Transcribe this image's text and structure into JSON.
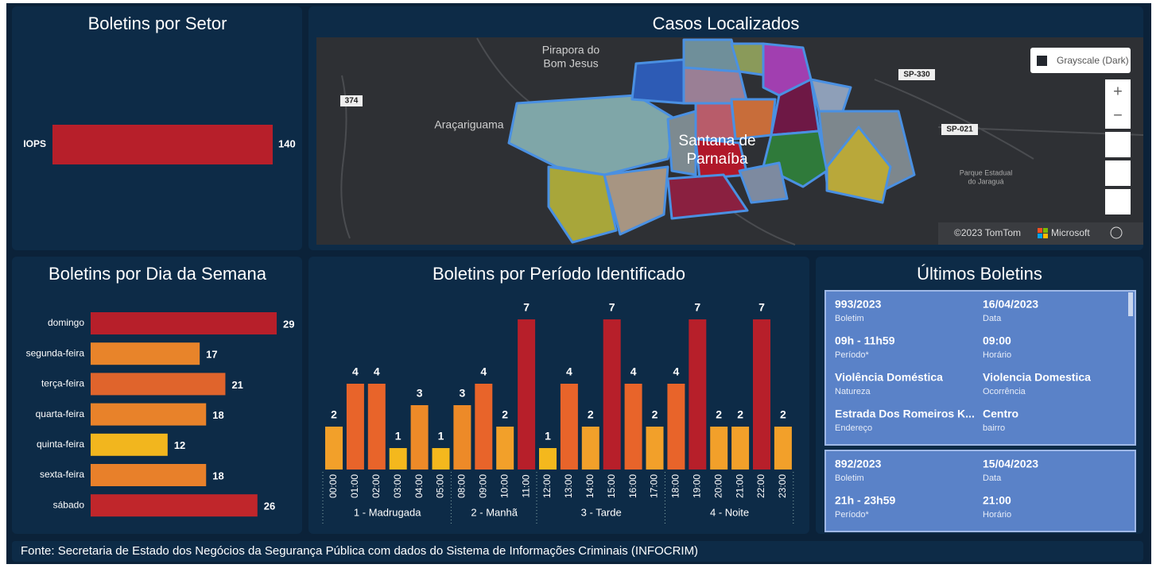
{
  "sector_panel": {
    "title": "Boletins por Setor",
    "categories": [
      "IOPS"
    ],
    "values": [
      140
    ],
    "color": "#b71f2a"
  },
  "map_panel": {
    "title": "Casos Localizados",
    "places": [
      "Pirapora do",
      "Bom Jesus",
      "Araçariguama",
      "Santana de",
      "Parnaíba",
      "Parque Estadual",
      "do Jaraguá"
    ],
    "roads": [
      "374",
      "SP-330",
      "SP-021"
    ],
    "style_button": "Grayscale (Dark)",
    "zoom_in": "+",
    "zoom_out": "−",
    "copyright": "©2023 TomTom",
    "provider": "Microsoft"
  },
  "weekday_panel": {
    "title": "Boletins por Dia da Semana",
    "categories": [
      "domingo",
      "segunda-feira",
      "terça-feira",
      "quarta-feira",
      "quinta-feira",
      "sexta-feira",
      "sábado"
    ],
    "values": [
      29,
      17,
      21,
      18,
      12,
      18,
      26
    ],
    "colors": [
      "#b71f2a",
      "#e8842a",
      "#e0642c",
      "#e8822a",
      "#f2b61e",
      "#e8802a",
      "#c0262b"
    ]
  },
  "period_panel": {
    "title": "Boletins por Período Identificado",
    "groups": [
      {
        "label": "1 - Madrugada",
        "hours": [
          "00:00",
          "01:00",
          "02:00",
          "03:00",
          "04:00",
          "05:00"
        ],
        "values": [
          2,
          4,
          4,
          1,
          3,
          1
        ],
        "colors": [
          "#f2a02a",
          "#e8642a",
          "#e8642a",
          "#f4b81d",
          "#ed8a28",
          "#f4b81d"
        ]
      },
      {
        "label": "2 - Manhã",
        "hours": [
          "08:00",
          "09:00",
          "10:00",
          "11:00"
        ],
        "values": [
          3,
          4,
          2,
          7
        ],
        "colors": [
          "#ed8a28",
          "#e8642a",
          "#f2a02a",
          "#b71f2a"
        ]
      },
      {
        "label": "3 - Tarde",
        "hours": [
          "12:00",
          "13:00",
          "14:00",
          "15:00",
          "16:00",
          "17:00"
        ],
        "values": [
          1,
          4,
          2,
          7,
          4,
          2
        ],
        "colors": [
          "#f4b81d",
          "#e8642a",
          "#f2a02a",
          "#b71f2a",
          "#e8642a",
          "#f2a02a"
        ]
      },
      {
        "label": "4 - Noite",
        "hours": [
          "18:00",
          "19:00",
          "20:00",
          "21:00",
          "22:00",
          "23:00"
        ],
        "values": [
          4,
          7,
          2,
          2,
          7,
          2
        ],
        "colors": [
          "#e8642a",
          "#b71f2a",
          "#f2a02a",
          "#f2a02a",
          "#b71f2a",
          "#f2a02a"
        ]
      }
    ]
  },
  "latest_panel": {
    "title": "Últimos Boletins",
    "records": [
      {
        "fields": [
          {
            "value": "993/2023",
            "label": "Boletim"
          },
          {
            "value": "16/04/2023",
            "label": "Data"
          },
          {
            "value": "09h - 11h59",
            "label": "Período*"
          },
          {
            "value": "09:00",
            "label": "Horário"
          },
          {
            "value": "Violência Doméstica",
            "label": "Natureza"
          },
          {
            "value": "Violencia Domestica",
            "label": "Ocorrência"
          },
          {
            "value": "Estrada Dos Romeiros K...",
            "label": "Endereço"
          },
          {
            "value": "Centro",
            "label": "bairro"
          }
        ]
      },
      {
        "fields": [
          {
            "value": "892/2023",
            "label": "Boletim"
          },
          {
            "value": "15/04/2023",
            "label": "Data"
          },
          {
            "value": "21h - 23h59",
            "label": "Período*"
          },
          {
            "value": "21:00",
            "label": "Horário"
          }
        ]
      }
    ]
  },
  "footer": "Fonte: Secretaria de Estado dos Negócios da Segurança Pública com dados do Sistema de Informações Criminais (INFOCRIM)"
}
